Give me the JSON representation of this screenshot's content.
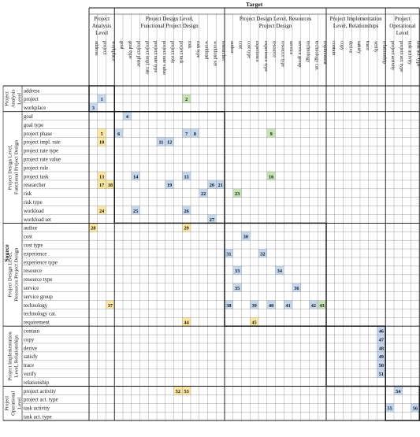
{
  "header": {
    "target": "Target",
    "source": "Source"
  },
  "col_groups": [
    {
      "lines": [
        "Project",
        "Analysis",
        "Level"
      ],
      "span": 3
    },
    {
      "lines": [
        "Project Design Level,",
        "Functional Project Design"
      ],
      "span": 13
    },
    {
      "lines": [
        "Project Design Level, Resources",
        "Project Design"
      ],
      "span": 12
    },
    {
      "lines": [
        "Project Implementation",
        "Level, Relationships"
      ],
      "span": 7
    },
    {
      "lines": [
        "Project",
        "Operational",
        "Level"
      ],
      "span": 4
    }
  ],
  "columns": [
    "address",
    "project",
    "workplace",
    "goal",
    "goal type",
    "project phase",
    "project impl. rate",
    "project rate type",
    "project rate value",
    "project role",
    "project task",
    "risk",
    "risk type",
    "workload",
    "workload set",
    "researcher",
    "author",
    "cost",
    "cost type",
    "experience",
    "experience type",
    "resource",
    "resource type",
    "service",
    "service group",
    "technology",
    "technology cat.",
    "requirement",
    "contain",
    "copy",
    "derive",
    "satisfy",
    "trace",
    "verify",
    "relationship",
    "project activity",
    "project act. type",
    "task activity",
    "task act. type"
  ],
  "row_groups": [
    {
      "lines": [
        "Project",
        "Analysis",
        "Level"
      ],
      "span": 3
    },
    {
      "lines": [
        "Project Design Level,",
        "Functional Project Design"
      ],
      "span": 13
    },
    {
      "lines": [
        "Project Design Level,",
        "Resources Project Design"
      ],
      "span": 12
    },
    {
      "lines": [
        "Project Implementation",
        "Level, Relationships"
      ],
      "span": 7
    },
    {
      "lines": [
        "Project",
        "Operational",
        "Level"
      ],
      "span": 4
    }
  ],
  "rows": [
    "address",
    "project",
    "workplace",
    "goal",
    "goal type",
    "project phase",
    "project impl. rate",
    "project rate type",
    "project rate value",
    "project role",
    "project task",
    "researcher",
    "risk",
    "risk type",
    "workload",
    "workload set",
    "author",
    "cost",
    "cost type",
    "experience",
    "experience type",
    "resource",
    "resource type",
    "service",
    "service group",
    "technology",
    "technology cat.",
    "requirement",
    "contain",
    "copy",
    "derive",
    "satisfy",
    "trace",
    "verify",
    "relationship",
    "project activity",
    "project act. type",
    "task activity",
    "task act. type"
  ],
  "colors": {
    "blue": "#c5d8ee",
    "yellow": "#fbe6a2",
    "green": "#c6e3b5",
    "grid": "#888888",
    "border": "#111111"
  },
  "cells": [
    {
      "n": "1",
      "row": 1,
      "col": 1,
      "color": "blue"
    },
    {
      "n": "2",
      "row": 1,
      "col": 11,
      "color": "green"
    },
    {
      "n": "3",
      "row": 2,
      "col": 0,
      "color": "blue"
    },
    {
      "n": "4",
      "row": 3,
      "col": 4,
      "color": "blue"
    },
    {
      "n": "5",
      "row": 5,
      "col": 1,
      "color": "yellow"
    },
    {
      "n": "6",
      "row": 5,
      "col": 3,
      "color": "blue"
    },
    {
      "n": "7",
      "row": 5,
      "col": 11,
      "color": "blue"
    },
    {
      "n": "8",
      "row": 5,
      "col": 12,
      "color": "blue"
    },
    {
      "n": "9",
      "row": 5,
      "col": 21,
      "color": "green"
    },
    {
      "n": "10",
      "row": 6,
      "col": 1,
      "color": "yellow"
    },
    {
      "n": "11",
      "row": 6,
      "col": 8,
      "color": "blue"
    },
    {
      "n": "12",
      "row": 6,
      "col": 9,
      "color": "blue"
    },
    {
      "n": "13",
      "row": 10,
      "col": 1,
      "color": "yellow"
    },
    {
      "n": "14",
      "row": 10,
      "col": 5,
      "color": "blue"
    },
    {
      "n": "15",
      "row": 10,
      "col": 11,
      "color": "blue"
    },
    {
      "n": "16",
      "row": 10,
      "col": 21,
      "color": "green"
    },
    {
      "n": "17",
      "row": 11,
      "col": 1,
      "color": "yellow"
    },
    {
      "n": "18",
      "row": 11,
      "col": 2,
      "color": "yellow"
    },
    {
      "n": "19",
      "row": 11,
      "col": 9,
      "color": "blue"
    },
    {
      "n": "20",
      "row": 11,
      "col": 14,
      "color": "blue"
    },
    {
      "n": "21",
      "row": 11,
      "col": 15,
      "color": "blue"
    },
    {
      "n": "22",
      "row": 12,
      "col": 13,
      "color": "blue"
    },
    {
      "n": "23",
      "row": 12,
      "col": 17,
      "color": "green"
    },
    {
      "n": "24",
      "row": 14,
      "col": 1,
      "color": "yellow"
    },
    {
      "n": "25",
      "row": 14,
      "col": 5,
      "color": "blue"
    },
    {
      "n": "26",
      "row": 14,
      "col": 11,
      "color": "blue"
    },
    {
      "n": "27",
      "row": 15,
      "col": 14,
      "color": "blue"
    },
    {
      "n": "28",
      "row": 16,
      "col": 0,
      "color": "yellow"
    },
    {
      "n": "29",
      "row": 16,
      "col": 11,
      "color": "yellow"
    },
    {
      "n": "30",
      "row": 17,
      "col": 18,
      "color": "blue"
    },
    {
      "n": "31",
      "row": 19,
      "col": 16,
      "color": "blue"
    },
    {
      "n": "32",
      "row": 19,
      "col": 20,
      "color": "blue"
    },
    {
      "n": "33",
      "row": 21,
      "col": 17,
      "color": "blue"
    },
    {
      "n": "34",
      "row": 21,
      "col": 22,
      "color": "blue"
    },
    {
      "n": "35",
      "row": 23,
      "col": 17,
      "color": "blue"
    },
    {
      "n": "36",
      "row": 23,
      "col": 24,
      "color": "blue"
    },
    {
      "n": "37",
      "row": 25,
      "col": 2,
      "color": "yellow"
    },
    {
      "n": "38",
      "row": 25,
      "col": 16,
      "color": "blue"
    },
    {
      "n": "39",
      "row": 25,
      "col": 19,
      "color": "blue"
    },
    {
      "n": "40",
      "row": 25,
      "col": 21,
      "color": "blue"
    },
    {
      "n": "41",
      "row": 25,
      "col": 23,
      "color": "blue"
    },
    {
      "n": "42",
      "row": 25,
      "col": 26,
      "color": "blue"
    },
    {
      "n": "43",
      "row": 25,
      "col": 27,
      "color": "green"
    },
    {
      "n": "44",
      "row": 27,
      "col": 11,
      "color": "yellow"
    },
    {
      "n": "45",
      "row": 27,
      "col": 19,
      "color": "yellow"
    },
    {
      "n": "46",
      "row": 28,
      "col": 34,
      "color": "blue"
    },
    {
      "n": "47",
      "row": 29,
      "col": 34,
      "color": "blue"
    },
    {
      "n": "48",
      "row": 30,
      "col": 34,
      "color": "blue"
    },
    {
      "n": "49",
      "row": 31,
      "col": 34,
      "color": "blue"
    },
    {
      "n": "50",
      "row": 32,
      "col": 34,
      "color": "blue"
    },
    {
      "n": "51",
      "row": 33,
      "col": 34,
      "color": "blue"
    },
    {
      "n": "52",
      "row": 35,
      "col": 10,
      "color": "yellow"
    },
    {
      "n": "53",
      "row": 35,
      "col": 11,
      "color": "yellow"
    },
    {
      "n": "54",
      "row": 35,
      "col": 36,
      "color": "blue"
    },
    {
      "n": "55",
      "row": 37,
      "col": 35,
      "color": "blue"
    },
    {
      "n": "56",
      "row": 37,
      "col": 38,
      "color": "blue"
    }
  ]
}
